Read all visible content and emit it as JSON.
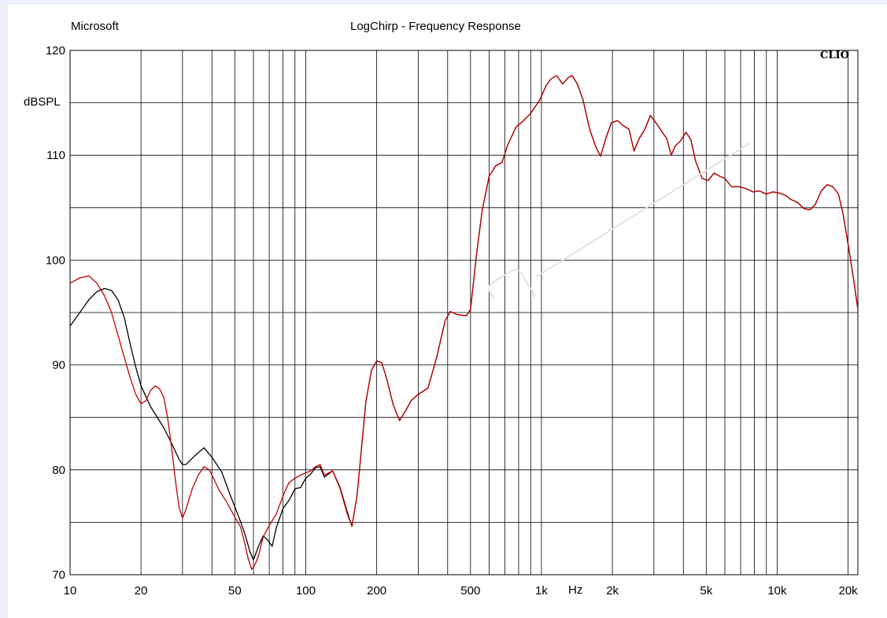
{
  "header": {
    "left_label": "Microsoft",
    "title": "LogChirp - Frequency Response",
    "brand": "CLIO"
  },
  "colors": {
    "background": "#ffffff",
    "frame": "#edf0fc",
    "grid": "#000000",
    "series_black": "#000000",
    "series_red": "#c00000"
  },
  "chart_data": {
    "type": "line",
    "title": "LogChirp - Frequency Response",
    "xlabel": "Hz",
    "ylabel": "dBSPL",
    "x_scale": "log",
    "xlim": [
      10,
      22000
    ],
    "ylim": [
      70,
      120
    ],
    "grid": true,
    "x_tick_labels": [
      {
        "value": 10,
        "label": "10"
      },
      {
        "value": 20,
        "label": "20"
      },
      {
        "value": 50,
        "label": "50"
      },
      {
        "value": 100,
        "label": "100"
      },
      {
        "value": 200,
        "label": "200"
      },
      {
        "value": 500,
        "label": "500"
      },
      {
        "value": 1000,
        "label": "1k"
      },
      {
        "value": 2000,
        "label": "2k"
      },
      {
        "value": 5000,
        "label": "5k"
      },
      {
        "value": 10000,
        "label": "10k"
      },
      {
        "value": 20000,
        "label": "20k"
      }
    ],
    "y_tick_labels": [
      {
        "value": 70,
        "label": "70"
      },
      {
        "value": 80,
        "label": "80"
      },
      {
        "value": 90,
        "label": "90"
      },
      {
        "value": 100,
        "label": "100"
      },
      {
        "value": 110,
        "label": "110"
      },
      {
        "value": 120,
        "label": "120"
      }
    ],
    "y_minor_grid": [
      75,
      85,
      95,
      105,
      115
    ],
    "series": [
      {
        "color": "#000000",
        "points": [
          [
            10,
            93.7
          ],
          [
            11,
            95
          ],
          [
            12,
            96.2
          ],
          [
            13,
            97
          ],
          [
            14,
            97.3
          ],
          [
            15,
            97.1
          ],
          [
            16,
            96.2
          ],
          [
            17,
            94.5
          ],
          [
            18,
            92
          ],
          [
            19,
            89.8
          ],
          [
            20,
            88
          ],
          [
            22,
            86
          ],
          [
            25,
            84
          ],
          [
            27,
            82.5
          ],
          [
            29,
            81
          ],
          [
            30,
            80.5
          ],
          [
            31,
            80.5
          ],
          [
            34,
            81.4
          ],
          [
            37,
            82.1
          ],
          [
            40,
            81.2
          ],
          [
            44,
            79.8
          ],
          [
            48,
            77.5
          ],
          [
            52,
            75.5
          ],
          [
            55,
            74
          ],
          [
            58,
            72.2
          ],
          [
            60,
            71.4
          ],
          [
            63,
            72.7
          ],
          [
            66,
            73.7
          ],
          [
            69,
            73.3
          ],
          [
            72,
            72.7
          ],
          [
            75,
            74.5
          ],
          [
            80,
            76.3
          ],
          [
            85,
            77.1
          ],
          [
            90,
            78.2
          ],
          [
            95,
            78.3
          ],
          [
            100,
            79.2
          ],
          [
            105,
            79.6
          ],
          [
            110,
            80.2
          ],
          [
            115,
            80.3
          ],
          [
            120,
            79.3
          ],
          [
            130,
            79.9
          ],
          [
            140,
            78.3
          ],
          [
            150,
            76
          ],
          [
            157,
            74.6
          ],
          [
            165,
            77.5
          ],
          [
            180,
            86.5
          ],
          [
            190,
            89.5
          ],
          [
            200,
            90.4
          ],
          [
            210,
            90.2
          ],
          [
            220,
            88.8
          ],
          [
            235,
            86.2
          ],
          [
            250,
            84.7
          ],
          [
            265,
            85.6
          ],
          [
            280,
            86.6
          ],
          [
            300,
            87.2
          ],
          [
            330,
            87.8
          ],
          [
            360,
            90.8
          ],
          [
            390,
            94.2
          ],
          [
            410,
            95.1
          ],
          [
            440,
            94.8
          ],
          [
            480,
            94.7
          ],
          [
            500,
            95.3
          ],
          [
            530,
            100.5
          ],
          [
            560,
            104.7
          ],
          [
            600,
            108
          ],
          [
            640,
            109
          ],
          [
            680,
            109.3
          ],
          [
            720,
            111
          ],
          [
            780,
            112.7
          ],
          [
            830,
            113.2
          ],
          [
            900,
            114
          ],
          [
            980,
            115.2
          ],
          [
            1050,
            116.7
          ],
          [
            1100,
            117.3
          ],
          [
            1160,
            117.6
          ],
          [
            1230,
            116.8
          ],
          [
            1300,
            117.4
          ],
          [
            1350,
            117.6
          ],
          [
            1420,
            116.8
          ],
          [
            1500,
            115.3
          ],
          [
            1600,
            112.5
          ],
          [
            1700,
            110.8
          ],
          [
            1780,
            109.9
          ],
          [
            1880,
            111.7
          ],
          [
            1980,
            113.1
          ],
          [
            2100,
            113.3
          ],
          [
            2230,
            112.8
          ],
          [
            2350,
            112.5
          ],
          [
            2470,
            110.4
          ],
          [
            2600,
            111.6
          ],
          [
            2750,
            112.5
          ],
          [
            2900,
            113.8
          ],
          [
            3080,
            113
          ],
          [
            3250,
            112.2
          ],
          [
            3400,
            111.6
          ],
          [
            3550,
            110
          ],
          [
            3700,
            110.9
          ],
          [
            3900,
            111.4
          ],
          [
            4100,
            112.2
          ],
          [
            4300,
            111.5
          ],
          [
            4500,
            109.5
          ],
          [
            4800,
            107.8
          ],
          [
            5100,
            107.6
          ],
          [
            5400,
            108.3
          ],
          [
            5700,
            108
          ],
          [
            6000,
            107.8
          ],
          [
            6400,
            107
          ],
          [
            6900,
            107
          ],
          [
            7400,
            106.8
          ],
          [
            7900,
            106.5
          ],
          [
            8400,
            106.6
          ],
          [
            9000,
            106.3
          ],
          [
            9600,
            106.5
          ],
          [
            10200,
            106.4
          ],
          [
            10800,
            106.2
          ],
          [
            11400,
            105.8
          ],
          [
            12200,
            105.5
          ],
          [
            13000,
            104.9
          ],
          [
            13800,
            104.8
          ],
          [
            14500,
            105.3
          ],
          [
            15400,
            106.6
          ],
          [
            16300,
            107.2
          ],
          [
            17200,
            107
          ],
          [
            18200,
            106.3
          ],
          [
            19000,
            104.5
          ],
          [
            20000,
            101.5
          ],
          [
            21000,
            98.5
          ],
          [
            22000,
            95.3
          ]
        ]
      },
      {
        "color": "#c00000",
        "points": [
          [
            10,
            97.8
          ],
          [
            11,
            98.3
          ],
          [
            12,
            98.5
          ],
          [
            13,
            97.8
          ],
          [
            14,
            96.6
          ],
          [
            15,
            95
          ],
          [
            16,
            92.8
          ],
          [
            17,
            90.7
          ],
          [
            18,
            88.8
          ],
          [
            19,
            87.2
          ],
          [
            20,
            86.3
          ],
          [
            21,
            86.6
          ],
          [
            22,
            87.6
          ],
          [
            23,
            88
          ],
          [
            24,
            87.7
          ],
          [
            25,
            86.9
          ],
          [
            26,
            84.8
          ],
          [
            27,
            82
          ],
          [
            28,
            79
          ],
          [
            29,
            76.4
          ],
          [
            30,
            75.4
          ],
          [
            31,
            76.2
          ],
          [
            33,
            78.2
          ],
          [
            35,
            79.5
          ],
          [
            37,
            80.3
          ],
          [
            39,
            80
          ],
          [
            41,
            79
          ],
          [
            43,
            78
          ],
          [
            46,
            77
          ],
          [
            50,
            75.5
          ],
          [
            53,
            74.5
          ],
          [
            55,
            73.1
          ],
          [
            57,
            71.5
          ],
          [
            59,
            70.5
          ],
          [
            61,
            71
          ],
          [
            63,
            71.8
          ],
          [
            66,
            73.6
          ],
          [
            70,
            74.7
          ],
          [
            75,
            75.8
          ],
          [
            80,
            77.5
          ],
          [
            85,
            78.8
          ],
          [
            90,
            79.2
          ],
          [
            95,
            79.5
          ],
          [
            100,
            79.7
          ],
          [
            105,
            79.9
          ],
          [
            110,
            80.3
          ],
          [
            115,
            80.5
          ],
          [
            120,
            79.5
          ],
          [
            130,
            79.9
          ],
          [
            140,
            78.2
          ],
          [
            150,
            75.8
          ],
          [
            157,
            74.6
          ],
          [
            165,
            77.5
          ],
          [
            180,
            86.5
          ],
          [
            190,
            89.5
          ],
          [
            200,
            90.4
          ],
          [
            210,
            90.2
          ],
          [
            220,
            88.8
          ],
          [
            235,
            86.2
          ],
          [
            250,
            84.7
          ],
          [
            265,
            85.6
          ],
          [
            280,
            86.6
          ],
          [
            300,
            87.2
          ],
          [
            330,
            87.8
          ],
          [
            360,
            90.8
          ],
          [
            390,
            94.2
          ],
          [
            410,
            95.1
          ],
          [
            440,
            94.8
          ],
          [
            480,
            94.7
          ],
          [
            500,
            95.3
          ],
          [
            530,
            100.5
          ],
          [
            560,
            104.7
          ],
          [
            600,
            108
          ],
          [
            640,
            109
          ],
          [
            680,
            109.3
          ],
          [
            720,
            111
          ],
          [
            780,
            112.7
          ],
          [
            830,
            113.2
          ],
          [
            900,
            114
          ],
          [
            980,
            115.2
          ],
          [
            1050,
            116.7
          ],
          [
            1100,
            117.3
          ],
          [
            1160,
            117.6
          ],
          [
            1230,
            116.8
          ],
          [
            1300,
            117.4
          ],
          [
            1350,
            117.6
          ],
          [
            1420,
            116.8
          ],
          [
            1500,
            115.3
          ],
          [
            1600,
            112.5
          ],
          [
            1700,
            110.8
          ],
          [
            1780,
            109.9
          ],
          [
            1880,
            111.7
          ],
          [
            1980,
            113.1
          ],
          [
            2100,
            113.3
          ],
          [
            2230,
            112.8
          ],
          [
            2350,
            112.5
          ],
          [
            2470,
            110.4
          ],
          [
            2600,
            111.6
          ],
          [
            2750,
            112.5
          ],
          [
            2900,
            113.8
          ],
          [
            3080,
            113
          ],
          [
            3250,
            112.2
          ],
          [
            3400,
            111.6
          ],
          [
            3550,
            110
          ],
          [
            3700,
            110.9
          ],
          [
            3900,
            111.4
          ],
          [
            4100,
            112.2
          ],
          [
            4300,
            111.5
          ],
          [
            4500,
            109.5
          ],
          [
            4800,
            107.8
          ],
          [
            5100,
            107.6
          ],
          [
            5400,
            108.3
          ],
          [
            5700,
            108
          ],
          [
            6000,
            107.8
          ],
          [
            6400,
            107
          ],
          [
            6900,
            107
          ],
          [
            7400,
            106.8
          ],
          [
            7900,
            106.5
          ],
          [
            8400,
            106.6
          ],
          [
            9000,
            106.3
          ],
          [
            9600,
            106.5
          ],
          [
            10200,
            106.4
          ],
          [
            10800,
            106.2
          ],
          [
            11400,
            105.8
          ],
          [
            12200,
            105.5
          ],
          [
            13000,
            104.9
          ],
          [
            13800,
            104.8
          ],
          [
            14500,
            105.3
          ],
          [
            15400,
            106.6
          ],
          [
            16300,
            107.2
          ],
          [
            17200,
            107
          ],
          [
            18200,
            106.3
          ],
          [
            19000,
            104.5
          ],
          [
            20000,
            101.5
          ],
          [
            21000,
            98.5
          ],
          [
            22000,
            95.3
          ]
        ]
      }
    ]
  }
}
